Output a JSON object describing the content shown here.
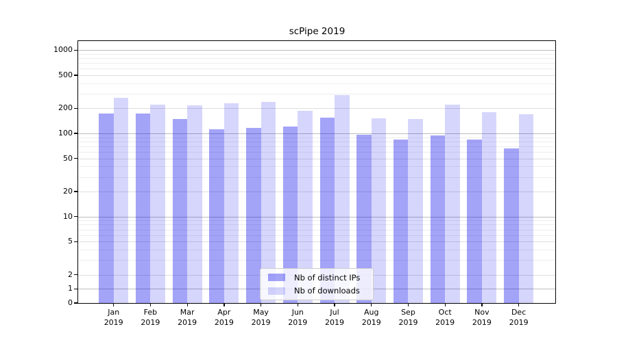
{
  "chart_data": {
    "type": "bar",
    "title": "scPipe 2019",
    "categories": [
      "Jan 2019",
      "Feb 2019",
      "Mar 2019",
      "Apr 2019",
      "May 2019",
      "Jun 2019",
      "Jul 2019",
      "Aug 2019",
      "Sep 2019",
      "Oct 2019",
      "Nov 2019",
      "Dec 2019"
    ],
    "series": [
      {
        "name": "Nb of distinct IPs",
        "color": "rgba(0,0,235,0.36)",
        "values": [
          172,
          172,
          149,
          113,
          116,
          121,
          154,
          97,
          84,
          94,
          84,
          66
        ]
      },
      {
        "name": "Nb of downloads",
        "color": "rgba(0,0,235,0.16)",
        "values": [
          267,
          222,
          219,
          230,
          237,
          188,
          289,
          151,
          150,
          220,
          181,
          171
        ]
      }
    ],
    "xlabel": "",
    "ylabel": "",
    "yscale": {
      "type": "symlog",
      "note": "linear from 0 to 2, log10 above 2"
    },
    "yticks": [
      0,
      1,
      2,
      5,
      10,
      20,
      50,
      100,
      200,
      500,
      1000
    ],
    "ylim": [
      0,
      1285
    ],
    "grid": {
      "horizontal": true,
      "vertical": false,
      "minor_mantissas": [
        3,
        4,
        6,
        7,
        8,
        9
      ],
      "minor_decades": [
        1,
        10,
        100
      ]
    },
    "legend": {
      "position": "lower center"
    },
    "colors": {
      "bar_dark": "#a4a4f4",
      "bar_light": "#dadaf9",
      "grid_decade": "#bcbcbc",
      "grid_major": "#dedede",
      "grid_minor": "#ededed",
      "spine": "#000000",
      "text": "#000000",
      "legend_border": "#cccccc",
      "legend_background": "rgba(255,255,255,0.8)"
    }
  }
}
